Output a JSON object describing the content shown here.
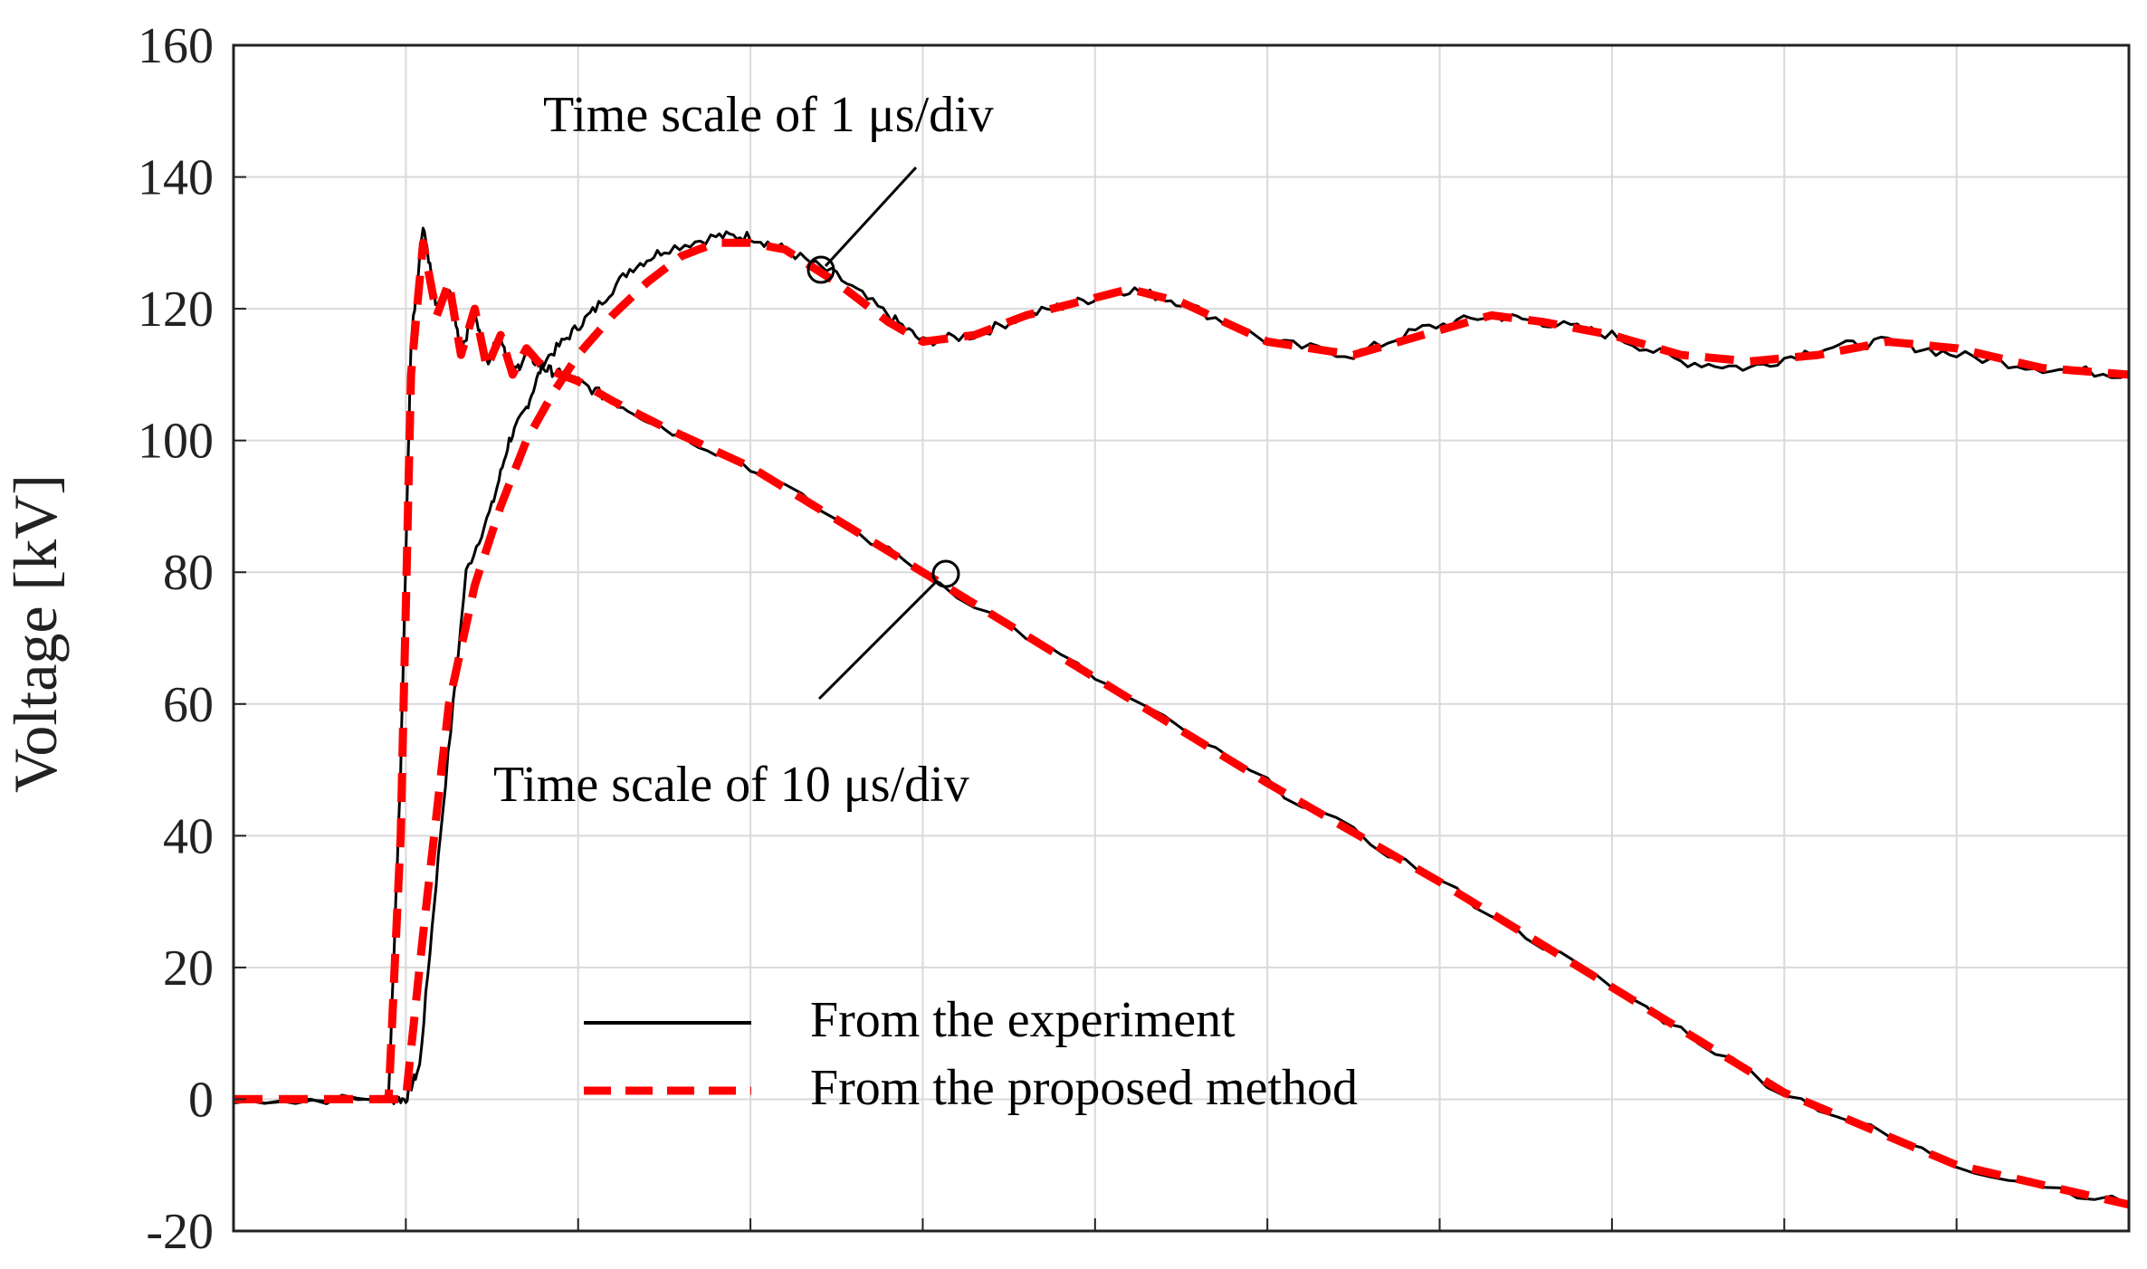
{
  "chart_data": {
    "type": "line",
    "title": "",
    "xlabel": "",
    "ylabel": "Voltage [kV]",
    "ylim": [
      -20,
      160
    ],
    "xlim": [
      0,
      11
    ],
    "x_divisions": 11,
    "grid": true,
    "y_ticks": [
      "160",
      "140",
      "120",
      "100",
      "80",
      "60",
      "40",
      "20",
      "0",
      "-20"
    ],
    "y_tick_values": [
      160,
      140,
      120,
      100,
      80,
      60,
      40,
      20,
      0,
      -20
    ],
    "colors": {
      "experiment": "#000000",
      "method": "#ff0000",
      "grid": "#d9d9d9"
    },
    "series": [
      {
        "name": "From the experiment",
        "style": "solid",
        "color": "#000000",
        "curve": "1 us/div",
        "x": [
          0,
          0.9,
          1.0,
          1.08,
          1.2,
          1.35,
          1.5,
          1.6,
          1.7,
          1.8,
          1.95,
          2.1,
          2.3,
          2.5,
          2.8,
          3.0,
          3.2,
          3.5,
          3.8,
          4.0,
          4.3,
          4.6,
          4.9,
          5.2,
          5.5,
          6.0,
          6.5,
          6.9,
          7.3,
          7.6,
          8.0,
          8.4,
          8.8,
          9.2,
          9.6,
          10.0,
          10.5,
          11.0
        ],
        "y": [
          0,
          0,
          0,
          5,
          40,
          80,
          90,
          100,
          105,
          112,
          116,
          120,
          126,
          129,
          131,
          131,
          129,
          125,
          119,
          115,
          116,
          119,
          121,
          123,
          121,
          115,
          113,
          117,
          119,
          118,
          116,
          112,
          111,
          114,
          115,
          113,
          111,
          110
        ]
      },
      {
        "name": "From the proposed method",
        "style": "dashed",
        "color": "#ff0000",
        "curve": "1 us/div",
        "x": [
          0,
          0.9,
          1.0,
          1.1,
          1.25,
          1.4,
          1.55,
          1.7,
          1.85,
          2.0,
          2.2,
          2.4,
          2.6,
          2.8,
          3.0,
          3.2,
          3.5,
          3.8,
          4.0,
          4.3,
          4.6,
          4.9,
          5.2,
          5.5,
          6.0,
          6.5,
          6.9,
          7.3,
          7.6,
          8.0,
          8.4,
          8.8,
          9.2,
          9.6,
          10.0,
          10.5,
          11.0
        ],
        "y": [
          0,
          0,
          0,
          25,
          60,
          78,
          90,
          100,
          107,
          113,
          119,
          124,
          128,
          130,
          130,
          129,
          124,
          118,
          115,
          116,
          119,
          121,
          123,
          121,
          115,
          113,
          116,
          119,
          118,
          116,
          113,
          112,
          113,
          115,
          114,
          111,
          110
        ]
      },
      {
        "name": "From the experiment",
        "style": "solid",
        "color": "#000000",
        "curve": "10 us/div",
        "x": [
          0,
          0.9,
          0.97,
          1.03,
          1.1,
          1.18,
          1.25,
          1.32,
          1.4,
          1.47,
          1.55,
          1.62,
          1.7,
          1.8,
          1.9,
          2.0,
          2.2,
          2.5,
          3.0,
          4.0,
          5.0,
          6.0,
          7.0,
          8.0,
          9.0,
          10.0,
          11.0
        ],
        "y": [
          0,
          0,
          50,
          115,
          133,
          120,
          123,
          114,
          119,
          112,
          116,
          110,
          113,
          111,
          110,
          109,
          106,
          102,
          96,
          80,
          64,
          48,
          33,
          17,
          1,
          -10,
          -16
        ]
      },
      {
        "name": "From the proposed method",
        "style": "dashed",
        "color": "#ff0000",
        "curve": "10 us/div",
        "x": [
          0,
          0.9,
          0.97,
          1.03,
          1.1,
          1.18,
          1.25,
          1.32,
          1.4,
          1.47,
          1.55,
          1.62,
          1.7,
          1.8,
          1.9,
          2.0,
          2.2,
          2.5,
          3.0,
          4.0,
          5.0,
          6.0,
          7.0,
          8.0,
          9.0,
          10.0,
          11.0
        ],
        "y": [
          0,
          0,
          40,
          110,
          130,
          119,
          124,
          113,
          120,
          111,
          116,
          110,
          114,
          111,
          110,
          109,
          106,
          102,
          96,
          80,
          64,
          48,
          33,
          17,
          1,
          -10,
          -16
        ]
      }
    ],
    "annotations": [
      {
        "text": "Time scale of 1 μs/div",
        "x": 3.45,
        "y": 126
      },
      {
        "text": "Time scale of 10 μs/div",
        "x": 4.2,
        "y": 80
      }
    ],
    "legend": {
      "position": "bottom-center",
      "entries": [
        "From the experiment",
        "From the proposed method"
      ]
    }
  }
}
